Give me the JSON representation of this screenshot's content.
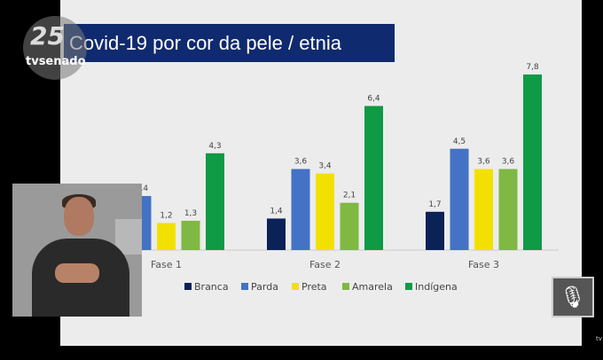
{
  "broadcast": {
    "logo_number": "25",
    "logo_text": "tvsenado",
    "corner_text": "tv"
  },
  "colors": {
    "Branca": "#0b2257",
    "Parda": "#4472c4",
    "Preta": "#f2e100",
    "Amarela": "#7fb843",
    "Indígena": "#0f9a45"
  },
  "chart_data": {
    "type": "bar",
    "title": "Covid-19 por cor da pele / etnia",
    "categories": [
      "Fase 1",
      "Fase 2",
      "Fase 3"
    ],
    "series": [
      {
        "name": "Branca",
        "values": [
          null,
          1.4,
          1.7
        ],
        "labels": [
          "",
          "1,4",
          "1,7"
        ]
      },
      {
        "name": "Parda",
        "values": [
          2.4,
          3.6,
          4.5
        ],
        "labels": [
          "2,4",
          "3,6",
          "4,5"
        ]
      },
      {
        "name": "Preta",
        "values": [
          1.2,
          3.4,
          3.6
        ],
        "labels": [
          "1,2",
          "3,4",
          "3,6"
        ]
      },
      {
        "name": "Amarela",
        "values": [
          1.3,
          2.1,
          3.6
        ],
        "labels": [
          "1,3",
          "2,1",
          "3,6"
        ]
      },
      {
        "name": "Indígena",
        "values": [
          4.3,
          6.4,
          7.8
        ],
        "labels": [
          "4,3",
          "6,4",
          "7,8"
        ]
      }
    ],
    "ylim": [
      0,
      8
    ],
    "legend": "bottom",
    "grid": false
  }
}
